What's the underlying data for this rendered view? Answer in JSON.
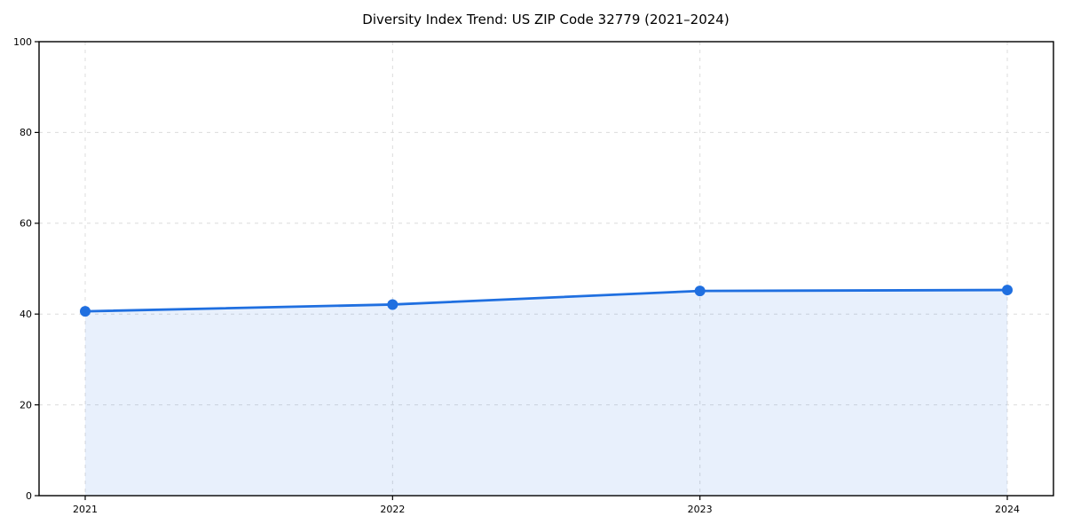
{
  "figure": {
    "background": "#ffffff"
  },
  "chart_data": {
    "type": "line",
    "title": "Diversity Index Trend: US ZIP Code 32779 (2021–2024)",
    "categories": [
      "2021",
      "2022",
      "2023",
      "2024"
    ],
    "values": [
      40.6,
      42.1,
      45.1,
      45.3
    ],
    "xlabel": "",
    "ylabel": "",
    "ylim": [
      0,
      100
    ],
    "yticks": [
      0,
      20,
      40,
      60,
      80,
      100
    ],
    "grid": true,
    "grid_style": "dashed",
    "legend": "none",
    "marker": "circle",
    "area_fill": true,
    "colors": {
      "line": "#1f6fe0",
      "marker": "#1f6fe0",
      "fill": "#1f6fe0",
      "fill_opacity": 0.1,
      "grid": "#dcdcdc",
      "spine": "#000000",
      "tick_text": "#000000",
      "title_text": "#000000",
      "background": "#ffffff"
    }
  }
}
